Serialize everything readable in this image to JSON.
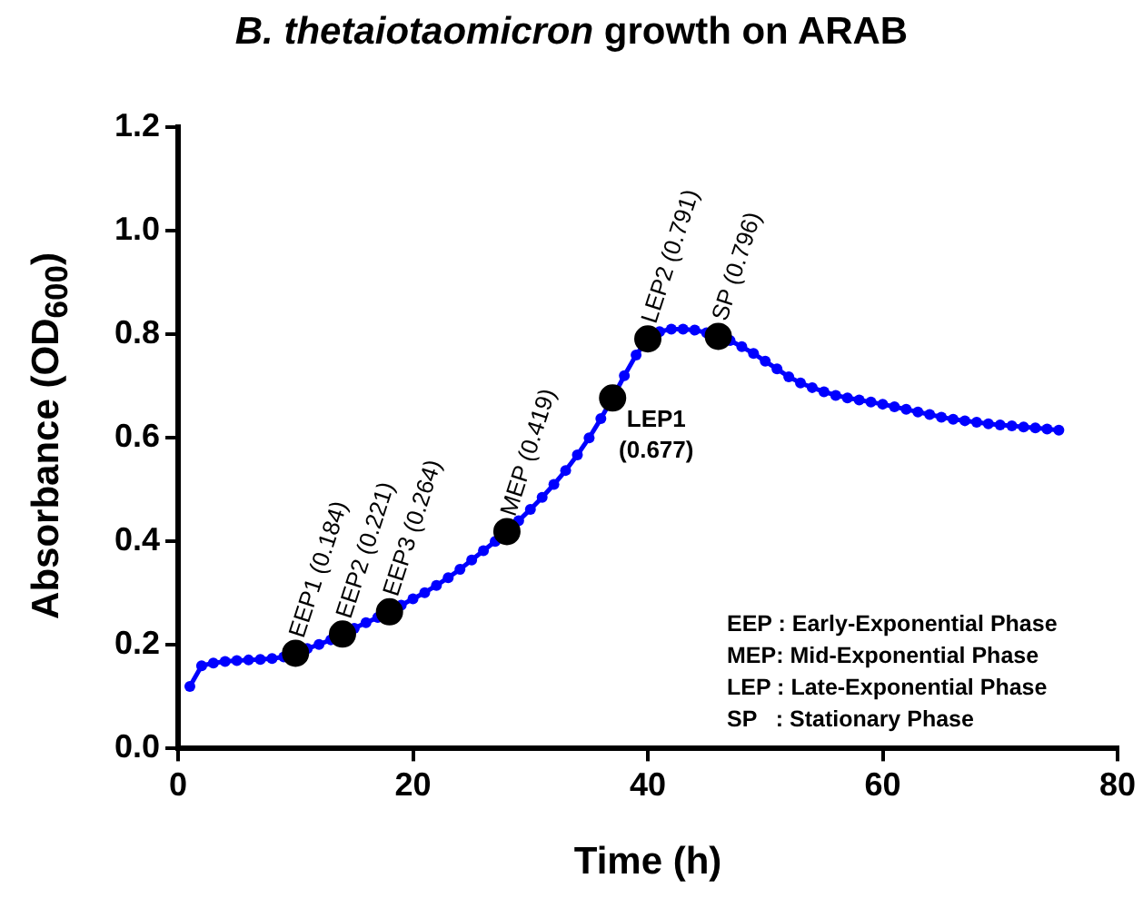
{
  "chart_data": {
    "type": "line",
    "title": "B. thetaiotaomicron growth on ARAB",
    "xlabel": "Time (h)",
    "ylabel": "Absorbance (OD$_{600}$)",
    "xlim": [
      0,
      80
    ],
    "xticks": [
      0,
      20,
      40,
      60,
      80
    ],
    "ylim": [
      0,
      1.2
    ],
    "yticks": [
      {
        "value": 0,
        "label": "0.0"
      },
      0.2,
      0.4,
      0.6,
      0.8,
      {
        "value": 1,
        "label": "1.0"
      },
      1.2
    ],
    "grid": false,
    "legend": false,
    "marker": "circle",
    "line_style": "solid",
    "series": [
      {
        "color": "#0000ff",
        "x": [
          1,
          2,
          3,
          4,
          5,
          6,
          7,
          8,
          9,
          10,
          11,
          12,
          13,
          14,
          15,
          16,
          17,
          18,
          19,
          20,
          21,
          22,
          23,
          24,
          25,
          26,
          27,
          28,
          29,
          30,
          31,
          32,
          33,
          34,
          35,
          36,
          37,
          38,
          39,
          40,
          41,
          42,
          43,
          44,
          45,
          46,
          47,
          48,
          49,
          50,
          51,
          52,
          53,
          54,
          55,
          56,
          57,
          58,
          59,
          60,
          61,
          62,
          63,
          64,
          65,
          66,
          67,
          68,
          69,
          70,
          71,
          72,
          73,
          74,
          75
        ],
        "values": [
          0.12,
          0.16,
          0.165,
          0.168,
          0.17,
          0.171,
          0.172,
          0.174,
          0.177,
          0.184,
          0.193,
          0.201,
          0.21,
          0.221,
          0.232,
          0.243,
          0.253,
          0.264,
          0.277,
          0.289,
          0.301,
          0.315,
          0.33,
          0.346,
          0.364,
          0.382,
          0.4,
          0.419,
          0.44,
          0.462,
          0.485,
          0.51,
          0.537,
          0.567,
          0.6,
          0.637,
          0.677,
          0.72,
          0.76,
          0.791,
          0.805,
          0.81,
          0.81,
          0.808,
          0.803,
          0.796,
          0.788,
          0.776,
          0.763,
          0.748,
          0.733,
          0.718,
          0.706,
          0.697,
          0.689,
          0.682,
          0.677,
          0.673,
          0.669,
          0.665,
          0.66,
          0.655,
          0.65,
          0.645,
          0.64,
          0.636,
          0.633,
          0.63,
          0.627,
          0.625,
          0.623,
          0.621,
          0.619,
          0.617,
          0.615
        ]
      },
      {
        "type": "scatter",
        "color": "#000000",
        "x": [
          10,
          14,
          18,
          28,
          37,
          40,
          46
        ],
        "values": [
          0.184,
          0.221,
          0.264,
          0.419,
          0.677,
          0.791,
          0.796
        ]
      }
    ],
    "annotations": [
      {
        "text": "EEP1 (0.184)",
        "x": 10,
        "y": 0.184
      },
      {
        "text": "EEP2 (0.221)",
        "x": 14,
        "y": 0.221
      },
      {
        "text": "EEP3 (0.264)",
        "x": 18,
        "y": 0.264
      },
      {
        "text": "MEP (0.419)",
        "x": 28,
        "y": 0.419
      },
      {
        "text": "LEP1 (0.677)",
        "x": 37,
        "y": 0.677
      },
      {
        "text": "LEP2 (0.791)",
        "x": 40,
        "y": 0.791
      },
      {
        "text": "SP (0.796)",
        "x": 46,
        "y": 0.796
      },
      "EEP : Early-Exponential Phase",
      "MEP: Mid-Exponential Phase",
      "LEP : Late-Exponential Phase",
      "SP   : Stationary Phase"
    ]
  }
}
